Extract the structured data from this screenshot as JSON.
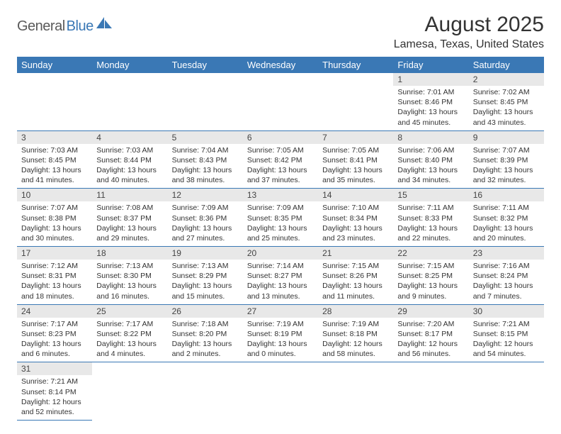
{
  "logo": {
    "part1": "General",
    "part2": "Blue"
  },
  "title": "August 2025",
  "subtitle": "Lamesa, Texas, United States",
  "colors": {
    "header_bg": "#3a78b5",
    "daynum_bg": "#e8e8e8",
    "border": "#3a78b5"
  },
  "weekdays": [
    "Sunday",
    "Monday",
    "Tuesday",
    "Wednesday",
    "Thursday",
    "Friday",
    "Saturday"
  ],
  "weeks": [
    [
      null,
      null,
      null,
      null,
      null,
      {
        "n": "1",
        "sr": "Sunrise: 7:01 AM",
        "ss": "Sunset: 8:46 PM",
        "d1": "Daylight: 13 hours",
        "d2": "and 45 minutes."
      },
      {
        "n": "2",
        "sr": "Sunrise: 7:02 AM",
        "ss": "Sunset: 8:45 PM",
        "d1": "Daylight: 13 hours",
        "d2": "and 43 minutes."
      }
    ],
    [
      {
        "n": "3",
        "sr": "Sunrise: 7:03 AM",
        "ss": "Sunset: 8:45 PM",
        "d1": "Daylight: 13 hours",
        "d2": "and 41 minutes."
      },
      {
        "n": "4",
        "sr": "Sunrise: 7:03 AM",
        "ss": "Sunset: 8:44 PM",
        "d1": "Daylight: 13 hours",
        "d2": "and 40 minutes."
      },
      {
        "n": "5",
        "sr": "Sunrise: 7:04 AM",
        "ss": "Sunset: 8:43 PM",
        "d1": "Daylight: 13 hours",
        "d2": "and 38 minutes."
      },
      {
        "n": "6",
        "sr": "Sunrise: 7:05 AM",
        "ss": "Sunset: 8:42 PM",
        "d1": "Daylight: 13 hours",
        "d2": "and 37 minutes."
      },
      {
        "n": "7",
        "sr": "Sunrise: 7:05 AM",
        "ss": "Sunset: 8:41 PM",
        "d1": "Daylight: 13 hours",
        "d2": "and 35 minutes."
      },
      {
        "n": "8",
        "sr": "Sunrise: 7:06 AM",
        "ss": "Sunset: 8:40 PM",
        "d1": "Daylight: 13 hours",
        "d2": "and 34 minutes."
      },
      {
        "n": "9",
        "sr": "Sunrise: 7:07 AM",
        "ss": "Sunset: 8:39 PM",
        "d1": "Daylight: 13 hours",
        "d2": "and 32 minutes."
      }
    ],
    [
      {
        "n": "10",
        "sr": "Sunrise: 7:07 AM",
        "ss": "Sunset: 8:38 PM",
        "d1": "Daylight: 13 hours",
        "d2": "and 30 minutes."
      },
      {
        "n": "11",
        "sr": "Sunrise: 7:08 AM",
        "ss": "Sunset: 8:37 PM",
        "d1": "Daylight: 13 hours",
        "d2": "and 29 minutes."
      },
      {
        "n": "12",
        "sr": "Sunrise: 7:09 AM",
        "ss": "Sunset: 8:36 PM",
        "d1": "Daylight: 13 hours",
        "d2": "and 27 minutes."
      },
      {
        "n": "13",
        "sr": "Sunrise: 7:09 AM",
        "ss": "Sunset: 8:35 PM",
        "d1": "Daylight: 13 hours",
        "d2": "and 25 minutes."
      },
      {
        "n": "14",
        "sr": "Sunrise: 7:10 AM",
        "ss": "Sunset: 8:34 PM",
        "d1": "Daylight: 13 hours",
        "d2": "and 23 minutes."
      },
      {
        "n": "15",
        "sr": "Sunrise: 7:11 AM",
        "ss": "Sunset: 8:33 PM",
        "d1": "Daylight: 13 hours",
        "d2": "and 22 minutes."
      },
      {
        "n": "16",
        "sr": "Sunrise: 7:11 AM",
        "ss": "Sunset: 8:32 PM",
        "d1": "Daylight: 13 hours",
        "d2": "and 20 minutes."
      }
    ],
    [
      {
        "n": "17",
        "sr": "Sunrise: 7:12 AM",
        "ss": "Sunset: 8:31 PM",
        "d1": "Daylight: 13 hours",
        "d2": "and 18 minutes."
      },
      {
        "n": "18",
        "sr": "Sunrise: 7:13 AM",
        "ss": "Sunset: 8:30 PM",
        "d1": "Daylight: 13 hours",
        "d2": "and 16 minutes."
      },
      {
        "n": "19",
        "sr": "Sunrise: 7:13 AM",
        "ss": "Sunset: 8:29 PM",
        "d1": "Daylight: 13 hours",
        "d2": "and 15 minutes."
      },
      {
        "n": "20",
        "sr": "Sunrise: 7:14 AM",
        "ss": "Sunset: 8:27 PM",
        "d1": "Daylight: 13 hours",
        "d2": "and 13 minutes."
      },
      {
        "n": "21",
        "sr": "Sunrise: 7:15 AM",
        "ss": "Sunset: 8:26 PM",
        "d1": "Daylight: 13 hours",
        "d2": "and 11 minutes."
      },
      {
        "n": "22",
        "sr": "Sunrise: 7:15 AM",
        "ss": "Sunset: 8:25 PM",
        "d1": "Daylight: 13 hours",
        "d2": "and 9 minutes."
      },
      {
        "n": "23",
        "sr": "Sunrise: 7:16 AM",
        "ss": "Sunset: 8:24 PM",
        "d1": "Daylight: 13 hours",
        "d2": "and 7 minutes."
      }
    ],
    [
      {
        "n": "24",
        "sr": "Sunrise: 7:17 AM",
        "ss": "Sunset: 8:23 PM",
        "d1": "Daylight: 13 hours",
        "d2": "and 6 minutes."
      },
      {
        "n": "25",
        "sr": "Sunrise: 7:17 AM",
        "ss": "Sunset: 8:22 PM",
        "d1": "Daylight: 13 hours",
        "d2": "and 4 minutes."
      },
      {
        "n": "26",
        "sr": "Sunrise: 7:18 AM",
        "ss": "Sunset: 8:20 PM",
        "d1": "Daylight: 13 hours",
        "d2": "and 2 minutes."
      },
      {
        "n": "27",
        "sr": "Sunrise: 7:19 AM",
        "ss": "Sunset: 8:19 PM",
        "d1": "Daylight: 13 hours",
        "d2": "and 0 minutes."
      },
      {
        "n": "28",
        "sr": "Sunrise: 7:19 AM",
        "ss": "Sunset: 8:18 PM",
        "d1": "Daylight: 12 hours",
        "d2": "and 58 minutes."
      },
      {
        "n": "29",
        "sr": "Sunrise: 7:20 AM",
        "ss": "Sunset: 8:17 PM",
        "d1": "Daylight: 12 hours",
        "d2": "and 56 minutes."
      },
      {
        "n": "30",
        "sr": "Sunrise: 7:21 AM",
        "ss": "Sunset: 8:15 PM",
        "d1": "Daylight: 12 hours",
        "d2": "and 54 minutes."
      }
    ],
    [
      {
        "n": "31",
        "sr": "Sunrise: 7:21 AM",
        "ss": "Sunset: 8:14 PM",
        "d1": "Daylight: 12 hours",
        "d2": "and 52 minutes."
      },
      null,
      null,
      null,
      null,
      null,
      null
    ]
  ]
}
